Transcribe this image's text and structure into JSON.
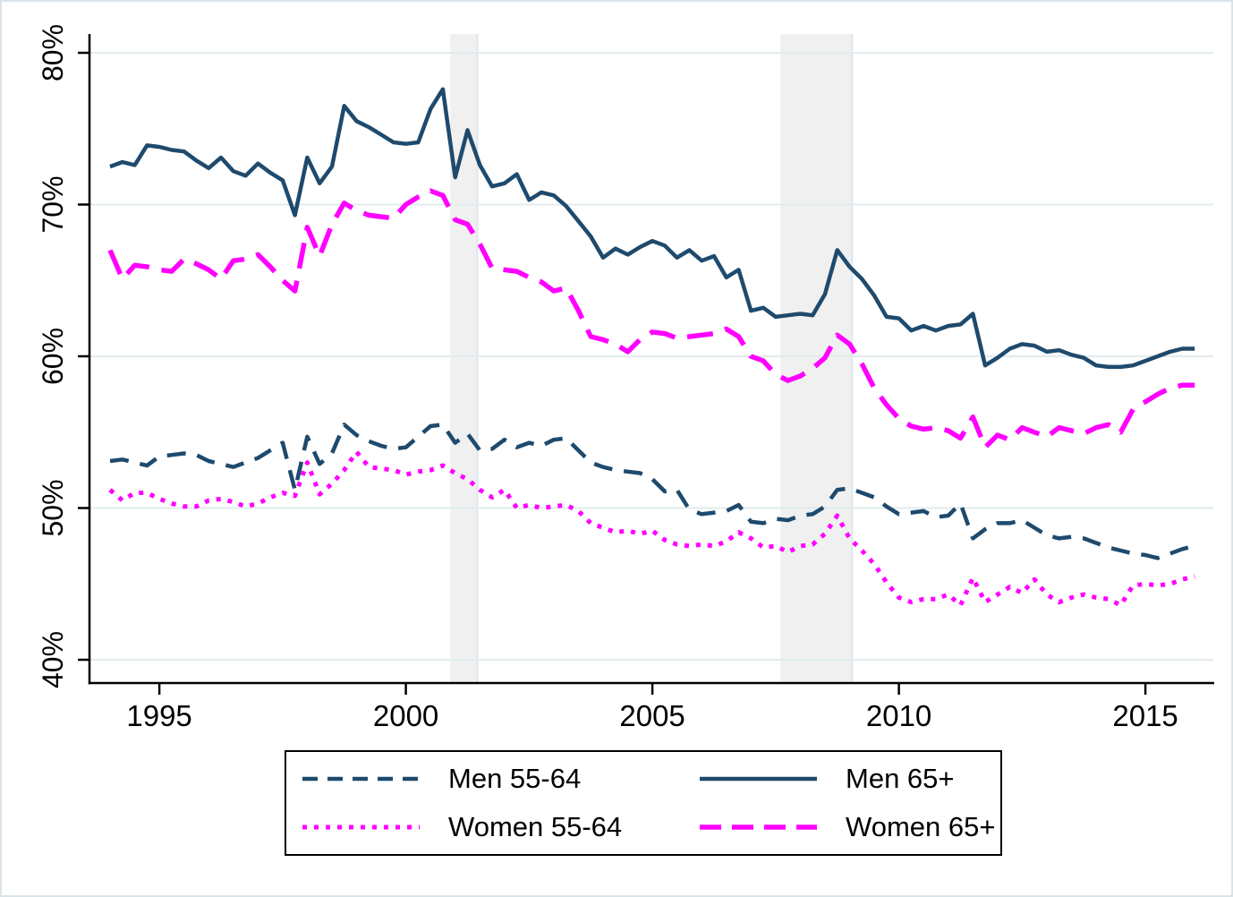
{
  "figure": {
    "background": "#ffffff",
    "border_color": "#d9e4e9"
  },
  "chart_data": {
    "type": "line",
    "title": "",
    "xlabel": "",
    "ylabel": "",
    "frequency": "quarterly",
    "x_start": 1994.0,
    "x_step": 0.25,
    "x_end": 2016.0,
    "xlim": [
      1993.6,
      2016.4
    ],
    "ylim": [
      38.5,
      81.2
    ],
    "grid": "horizontal",
    "gridline_color": "#e2ebee",
    "axis_color": "#000000",
    "band_color": "#f0f0f0",
    "band_edge_color": "#dce8ec",
    "recession_bands": [
      {
        "x_from": 2000.9,
        "x_to": 2001.45
      },
      {
        "x_from": 2007.6,
        "x_to": 2009.05
      }
    ],
    "y_ticks": [
      {
        "value": 40,
        "label": "40%"
      },
      {
        "value": 50,
        "label": "50%"
      },
      {
        "value": 60,
        "label": "60%"
      },
      {
        "value": 70,
        "label": "70%"
      },
      {
        "value": 80,
        "label": "80%"
      }
    ],
    "x_ticks": [
      {
        "value": 1995,
        "label": "1995"
      },
      {
        "value": 2000,
        "label": "2000"
      },
      {
        "value": 2005,
        "label": "2005"
      },
      {
        "value": 2010,
        "label": "2010"
      },
      {
        "value": 2015,
        "label": "2015"
      }
    ],
    "legend": {
      "position": "bottom-center",
      "border": true,
      "columns": 2
    },
    "series": [
      {
        "id": "men-55-64",
        "label": "Men 55-64",
        "color": "#1e4a6d",
        "style": "dashed",
        "values": [
          53.1,
          53.2,
          53.0,
          52.8,
          53.4,
          53.5,
          53.6,
          53.5,
          53.1,
          52.9,
          52.7,
          53.0,
          53.3,
          53.8,
          54.3,
          51.2,
          54.7,
          52.9,
          53.6,
          55.5,
          54.8,
          54.4,
          54.1,
          53.9,
          54.0,
          54.7,
          55.4,
          55.5,
          54.3,
          54.9,
          53.8,
          53.9,
          54.5,
          54.0,
          54.3,
          54.1,
          54.5,
          54.6,
          53.8,
          53.0,
          52.7,
          52.5,
          52.4,
          52.3,
          51.9,
          51.1,
          51.2,
          49.9,
          49.6,
          49.7,
          49.8,
          50.2,
          49.1,
          49.0,
          49.3,
          49.2,
          49.5,
          49.6,
          50.1,
          51.2,
          51.3,
          51.0,
          50.7,
          50.1,
          49.6,
          49.7,
          49.8,
          49.4,
          49.5,
          50.3,
          48.0,
          48.6,
          49.0,
          49.0,
          49.2,
          48.7,
          48.2,
          48.0,
          48.1,
          48.0,
          47.7,
          47.4,
          47.2,
          47.0,
          46.9,
          46.7,
          47.0,
          47.3,
          47.5
        ]
      },
      {
        "id": "women-55-64",
        "label": "Women 55-64",
        "color": "#ff00ff",
        "style": "dotted",
        "values": [
          51.2,
          50.5,
          51.0,
          51.0,
          50.6,
          50.3,
          50.1,
          50.1,
          50.5,
          50.6,
          50.4,
          50.1,
          50.3,
          50.7,
          51.0,
          50.8,
          53.0,
          50.9,
          51.6,
          52.5,
          53.7,
          52.7,
          52.6,
          52.5,
          52.2,
          52.4,
          52.5,
          52.8,
          52.3,
          51.9,
          51.2,
          50.7,
          51.2,
          50.0,
          50.2,
          50.0,
          50.1,
          50.2,
          49.8,
          49.0,
          48.7,
          48.4,
          48.5,
          48.3,
          48.5,
          47.9,
          47.6,
          47.5,
          47.6,
          47.5,
          47.8,
          48.4,
          48.0,
          47.4,
          47.5,
          47.1,
          47.5,
          47.6,
          48.3,
          49.5,
          48.0,
          47.2,
          46.3,
          45.1,
          44.1,
          43.8,
          44.0,
          44.0,
          44.3,
          43.6,
          45.4,
          43.8,
          44.3,
          44.8,
          44.4,
          45.3,
          44.3,
          43.8,
          44.1,
          44.3,
          44.1,
          44.0,
          43.6,
          44.9,
          45.0,
          44.9,
          45.0,
          45.3,
          45.5
        ]
      },
      {
        "id": "men-65plus",
        "label": "Men 65+",
        "color": "#1e4a6d",
        "style": "solid",
        "values": [
          72.5,
          72.8,
          72.6,
          73.9,
          73.8,
          73.6,
          73.5,
          72.9,
          72.4,
          73.1,
          72.2,
          71.9,
          72.7,
          72.1,
          71.6,
          69.3,
          73.1,
          71.4,
          72.5,
          76.5,
          75.5,
          75.1,
          74.6,
          74.1,
          74.0,
          74.1,
          76.3,
          77.6,
          71.8,
          74.9,
          72.6,
          71.2,
          71.4,
          72.0,
          70.3,
          70.8,
          70.6,
          69.9,
          68.9,
          67.9,
          66.5,
          67.1,
          66.7,
          67.2,
          67.6,
          67.3,
          66.5,
          67.0,
          66.3,
          66.6,
          65.2,
          65.7,
          63.0,
          63.2,
          62.6,
          62.7,
          62.8,
          62.7,
          64.1,
          67.0,
          65.9,
          65.1,
          64.0,
          62.6,
          62.5,
          61.7,
          62.0,
          61.7,
          62.0,
          62.1,
          62.8,
          59.4,
          59.9,
          60.5,
          60.8,
          60.7,
          60.3,
          60.4,
          60.1,
          59.9,
          59.4,
          59.3,
          59.3,
          59.4,
          59.7,
          60.0,
          60.3,
          60.5,
          60.5
        ]
      },
      {
        "id": "women-65plus",
        "label": "Women 65+",
        "color": "#ff00ff",
        "style": "long-dash",
        "values": [
          67.0,
          65.1,
          66.0,
          65.9,
          65.7,
          65.6,
          66.4,
          66.1,
          65.7,
          65.1,
          66.3,
          66.4,
          66.7,
          65.9,
          65.0,
          64.3,
          68.5,
          66.6,
          68.7,
          70.1,
          69.6,
          69.3,
          69.2,
          69.1,
          70.0,
          70.5,
          70.9,
          70.6,
          69.0,
          68.7,
          67.4,
          65.8,
          65.7,
          65.6,
          65.2,
          64.9,
          64.3,
          64.5,
          63.0,
          61.3,
          61.1,
          60.8,
          60.3,
          61.1,
          61.6,
          61.5,
          61.2,
          61.3,
          61.4,
          61.5,
          61.8,
          61.3,
          60.0,
          59.7,
          58.8,
          58.4,
          58.7,
          59.2,
          59.9,
          61.4,
          60.8,
          59.5,
          57.9,
          56.8,
          55.9,
          55.4,
          55.2,
          55.3,
          55.1,
          54.6,
          56.0,
          54.0,
          54.8,
          54.5,
          55.3,
          55.0,
          54.7,
          55.3,
          55.1,
          54.9,
          55.3,
          55.5,
          55.0,
          56.5,
          57.0,
          57.5,
          57.9,
          58.1,
          58.1
        ]
      }
    ]
  }
}
